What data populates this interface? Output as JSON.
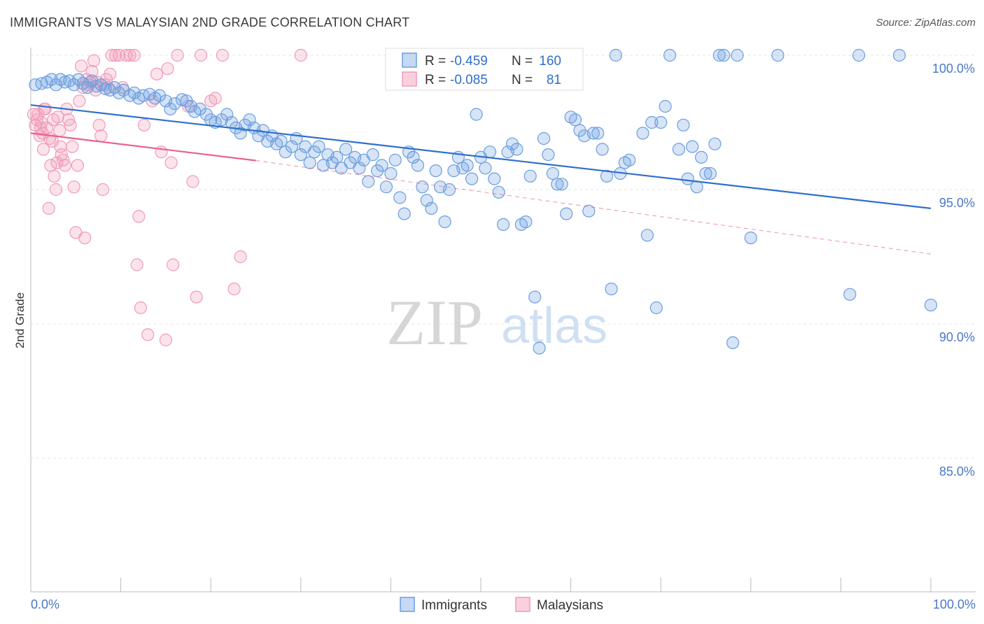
{
  "title": "IMMIGRANTS VS MALAYSIAN 2ND GRADE CORRELATION CHART",
  "source": "Source: ZipAtlas.com",
  "colors": {
    "immigrants": "#6a9ee0",
    "immigrants_line": "#2f6fcc",
    "malaysians": "#f19ab8",
    "malaysians_line": "#e8618f",
    "tick_text": "#4a78c8"
  },
  "legend": {
    "r_label": "R =",
    "n_label": "N =",
    "rows": [
      {
        "r": "-0.459",
        "n": "160"
      },
      {
        "r": "-0.085",
        "n": "81"
      }
    ]
  },
  "bottom_legend": {
    "immigrants": "Immigrants",
    "malaysians": "Malaysians"
  },
  "watermark": {
    "zip": "ZIP",
    "atlas": "atlas"
  },
  "chart_data": {
    "type": "scatter",
    "title": "IMMIGRANTS VS MALAYSIAN 2ND GRADE CORRELATION CHART",
    "xlabel": "",
    "ylabel": "2nd Grade",
    "xlim": [
      0,
      100
    ],
    "ylim": [
      80.3,
      100.8
    ],
    "x_tick_labels": [
      "0.0%",
      "100.0%"
    ],
    "y_ticks": [
      100,
      95,
      90,
      85
    ],
    "y_tick_labels": [
      "100.0%",
      "95.0%",
      "90.0%",
      "85.0%"
    ],
    "grid": "horizontal dashed",
    "legend_placement": "top-center",
    "series": [
      {
        "name": "Immigrants",
        "r": -0.459,
        "n": 160,
        "trend": {
          "x": [
            0,
            100
          ],
          "y": [
            98.15,
            94.3
          ]
        },
        "points": [
          [
            0.5,
            98.9
          ],
          [
            1.2,
            98.95
          ],
          [
            1.8,
            99.0
          ],
          [
            2.3,
            99.1
          ],
          [
            2.8,
            98.9
          ],
          [
            3.3,
            99.1
          ],
          [
            3.8,
            99.0
          ],
          [
            4.3,
            99.05
          ],
          [
            4.8,
            98.9
          ],
          [
            5.3,
            99.1
          ],
          [
            5.8,
            98.95
          ],
          [
            6.3,
            98.8
          ],
          [
            6.8,
            99.05
          ],
          [
            7.3,
            98.85
          ],
          [
            7.8,
            98.9
          ],
          [
            8.3,
            98.75
          ],
          [
            8.8,
            98.7
          ],
          [
            9.3,
            98.8
          ],
          [
            9.8,
            98.6
          ],
          [
            10.3,
            98.7
          ],
          [
            11.0,
            98.5
          ],
          [
            11.5,
            98.6
          ],
          [
            12.0,
            98.4
          ],
          [
            12.5,
            98.5
          ],
          [
            13.2,
            98.55
          ],
          [
            13.8,
            98.4
          ],
          [
            14.3,
            98.5
          ],
          [
            15.0,
            98.3
          ],
          [
            15.5,
            98.0
          ],
          [
            16.0,
            98.2
          ],
          [
            16.8,
            98.35
          ],
          [
            17.3,
            98.3
          ],
          [
            17.8,
            98.1
          ],
          [
            18.2,
            97.9
          ],
          [
            18.8,
            98.0
          ],
          [
            19.5,
            97.8
          ],
          [
            20.0,
            97.6
          ],
          [
            20.5,
            97.5
          ],
          [
            21.2,
            97.6
          ],
          [
            21.8,
            97.8
          ],
          [
            22.3,
            97.5
          ],
          [
            22.8,
            97.3
          ],
          [
            23.3,
            97.1
          ],
          [
            23.8,
            97.4
          ],
          [
            24.3,
            97.6
          ],
          [
            24.8,
            97.3
          ],
          [
            25.3,
            97.0
          ],
          [
            25.8,
            97.2
          ],
          [
            26.3,
            96.8
          ],
          [
            26.8,
            97.0
          ],
          [
            27.3,
            96.7
          ],
          [
            27.8,
            96.8
          ],
          [
            28.3,
            96.4
          ],
          [
            29.0,
            96.6
          ],
          [
            29.5,
            96.9
          ],
          [
            30.0,
            96.3
          ],
          [
            30.5,
            96.6
          ],
          [
            31.0,
            96.0
          ],
          [
            31.5,
            96.4
          ],
          [
            32.0,
            96.6
          ],
          [
            32.5,
            95.9
          ],
          [
            33.0,
            96.3
          ],
          [
            33.5,
            96.0
          ],
          [
            34.0,
            96.2
          ],
          [
            34.5,
            95.8
          ],
          [
            35.0,
            96.5
          ],
          [
            35.5,
            96.0
          ],
          [
            36.0,
            96.2
          ],
          [
            36.5,
            95.8
          ],
          [
            37.0,
            96.1
          ],
          [
            37.5,
            95.3
          ],
          [
            38.0,
            96.3
          ],
          [
            38.5,
            95.7
          ],
          [
            39.0,
            95.9
          ],
          [
            39.5,
            95.1
          ],
          [
            40.0,
            95.6
          ],
          [
            40.5,
            96.1
          ],
          [
            41.0,
            94.7
          ],
          [
            41.5,
            94.1
          ],
          [
            42.0,
            96.4
          ],
          [
            42.5,
            96.2
          ],
          [
            43.0,
            95.9
          ],
          [
            43.5,
            95.1
          ],
          [
            44.0,
            94.6
          ],
          [
            44.5,
            94.3
          ],
          [
            45.0,
            95.7
          ],
          [
            45.5,
            95.1
          ],
          [
            46.0,
            93.8
          ],
          [
            46.5,
            95.0
          ],
          [
            47.0,
            95.7
          ],
          [
            47.5,
            96.2
          ],
          [
            48.0,
            95.8
          ],
          [
            48.5,
            95.9
          ],
          [
            49.0,
            95.4
          ],
          [
            49.5,
            97.8
          ],
          [
            50.0,
            96.2
          ],
          [
            50.5,
            95.8
          ],
          [
            51.0,
            96.4
          ],
          [
            51.5,
            95.4
          ],
          [
            52.0,
            94.9
          ],
          [
            52.5,
            93.7
          ],
          [
            53.0,
            96.4
          ],
          [
            53.5,
            96.7
          ],
          [
            54.0,
            96.5
          ],
          [
            54.5,
            93.7
          ],
          [
            55.0,
            93.8
          ],
          [
            55.5,
            95.5
          ],
          [
            56.0,
            91.0
          ],
          [
            56.5,
            89.1
          ],
          [
            57.0,
            96.9
          ],
          [
            57.5,
            96.3
          ],
          [
            58.0,
            95.6
          ],
          [
            58.5,
            95.2
          ],
          [
            59.0,
            95.2
          ],
          [
            59.5,
            94.1
          ],
          [
            60.0,
            97.7
          ],
          [
            60.5,
            97.6
          ],
          [
            61.0,
            97.2
          ],
          [
            61.5,
            97.0
          ],
          [
            62.0,
            94.2
          ],
          [
            62.5,
            97.1
          ],
          [
            63.0,
            97.1
          ],
          [
            63.5,
            96.5
          ],
          [
            64.0,
            95.5
          ],
          [
            64.5,
            91.3
          ],
          [
            65.0,
            100.0
          ],
          [
            65.5,
            95.6
          ],
          [
            66.0,
            96.0
          ],
          [
            66.5,
            96.1
          ],
          [
            68.0,
            97.1
          ],
          [
            68.5,
            93.3
          ],
          [
            69.0,
            97.5
          ],
          [
            69.5,
            90.6
          ],
          [
            70.0,
            97.5
          ],
          [
            70.5,
            98.1
          ],
          [
            71.0,
            100.0
          ],
          [
            72.0,
            96.5
          ],
          [
            72.5,
            97.4
          ],
          [
            73.0,
            95.4
          ],
          [
            73.5,
            96.6
          ],
          [
            74.0,
            95.1
          ],
          [
            74.5,
            96.2
          ],
          [
            75.0,
            95.6
          ],
          [
            75.5,
            95.6
          ],
          [
            76.0,
            96.7
          ],
          [
            76.5,
            100.0
          ],
          [
            77.0,
            100.0
          ],
          [
            78.0,
            89.3
          ],
          [
            78.5,
            100.0
          ],
          [
            80.0,
            93.2
          ],
          [
            83.0,
            100.0
          ],
          [
            91.0,
            91.1
          ],
          [
            92.0,
            100.0
          ],
          [
            96.5,
            100.0
          ],
          [
            100.0,
            90.7
          ]
        ]
      },
      {
        "name": "Malaysians",
        "r": -0.085,
        "n": 81,
        "trend": {
          "x": [
            0,
            25
          ],
          "y": [
            97.1,
            96.08
          ]
        },
        "trend_extended": {
          "x": [
            25,
            100
          ],
          "y": [
            96.08,
            92.6
          ]
        },
        "points": [
          [
            0.3,
            97.8
          ],
          [
            0.5,
            97.4
          ],
          [
            0.7,
            97.6
          ],
          [
            1.0,
            97.0
          ],
          [
            1.2,
            97.5
          ],
          [
            1.4,
            96.5
          ],
          [
            1.6,
            98.0
          ],
          [
            1.8,
            97.3
          ],
          [
            2.0,
            94.3
          ],
          [
            2.2,
            95.9
          ],
          [
            2.4,
            96.8
          ],
          [
            2.6,
            95.5
          ],
          [
            2.8,
            95.0
          ],
          [
            3.0,
            97.7
          ],
          [
            3.2,
            97.2
          ],
          [
            3.4,
            96.3
          ],
          [
            3.6,
            96.1
          ],
          [
            3.8,
            95.9
          ],
          [
            4.0,
            98.0
          ],
          [
            4.2,
            97.6
          ],
          [
            4.4,
            97.4
          ],
          [
            4.6,
            96.6
          ],
          [
            4.8,
            95.1
          ],
          [
            5.0,
            93.4
          ],
          [
            5.2,
            95.9
          ],
          [
            5.4,
            98.3
          ],
          [
            5.6,
            99.6
          ],
          [
            5.8,
            98.8
          ],
          [
            6.0,
            93.2
          ],
          [
            6.2,
            99.1
          ],
          [
            6.4,
            98.9
          ],
          [
            6.6,
            99.0
          ],
          [
            6.8,
            99.4
          ],
          [
            7.0,
            99.8
          ],
          [
            7.2,
            98.7
          ],
          [
            7.4,
            99.0
          ],
          [
            7.6,
            97.4
          ],
          [
            7.8,
            97.0
          ],
          [
            8.0,
            95.0
          ],
          [
            8.2,
            98.9
          ],
          [
            8.4,
            99.1
          ],
          [
            8.6,
            98.8
          ],
          [
            8.8,
            99.3
          ],
          [
            9.0,
            100.0
          ],
          [
            9.4,
            100.0
          ],
          [
            9.8,
            100.0
          ],
          [
            10.2,
            98.8
          ],
          [
            10.6,
            100.0
          ],
          [
            11.0,
            100.0
          ],
          [
            11.5,
            100.0
          ],
          [
            11.8,
            92.2
          ],
          [
            12.0,
            94.0
          ],
          [
            12.2,
            90.6
          ],
          [
            12.6,
            97.4
          ],
          [
            13.0,
            89.6
          ],
          [
            13.5,
            98.3
          ],
          [
            14.0,
            99.3
          ],
          [
            14.5,
            96.4
          ],
          [
            15.0,
            89.4
          ],
          [
            15.2,
            99.5
          ],
          [
            15.6,
            96.0
          ],
          [
            15.8,
            92.2
          ],
          [
            16.3,
            100.0
          ],
          [
            17.5,
            98.1
          ],
          [
            18.0,
            95.3
          ],
          [
            18.4,
            91.0
          ],
          [
            18.9,
            100.0
          ],
          [
            20.0,
            98.3
          ],
          [
            20.5,
            98.4
          ],
          [
            21.3,
            100.0
          ],
          [
            22.6,
            91.3
          ],
          [
            23.3,
            92.5
          ],
          [
            30.0,
            100.0
          ],
          [
            0.8,
            97.8
          ],
          [
            1.1,
            97.3
          ],
          [
            1.3,
            97.1
          ],
          [
            1.5,
            98.0
          ],
          [
            2.1,
            96.9
          ],
          [
            2.5,
            97.6
          ],
          [
            2.9,
            96.0
          ],
          [
            3.3,
            96.6
          ]
        ]
      }
    ]
  }
}
